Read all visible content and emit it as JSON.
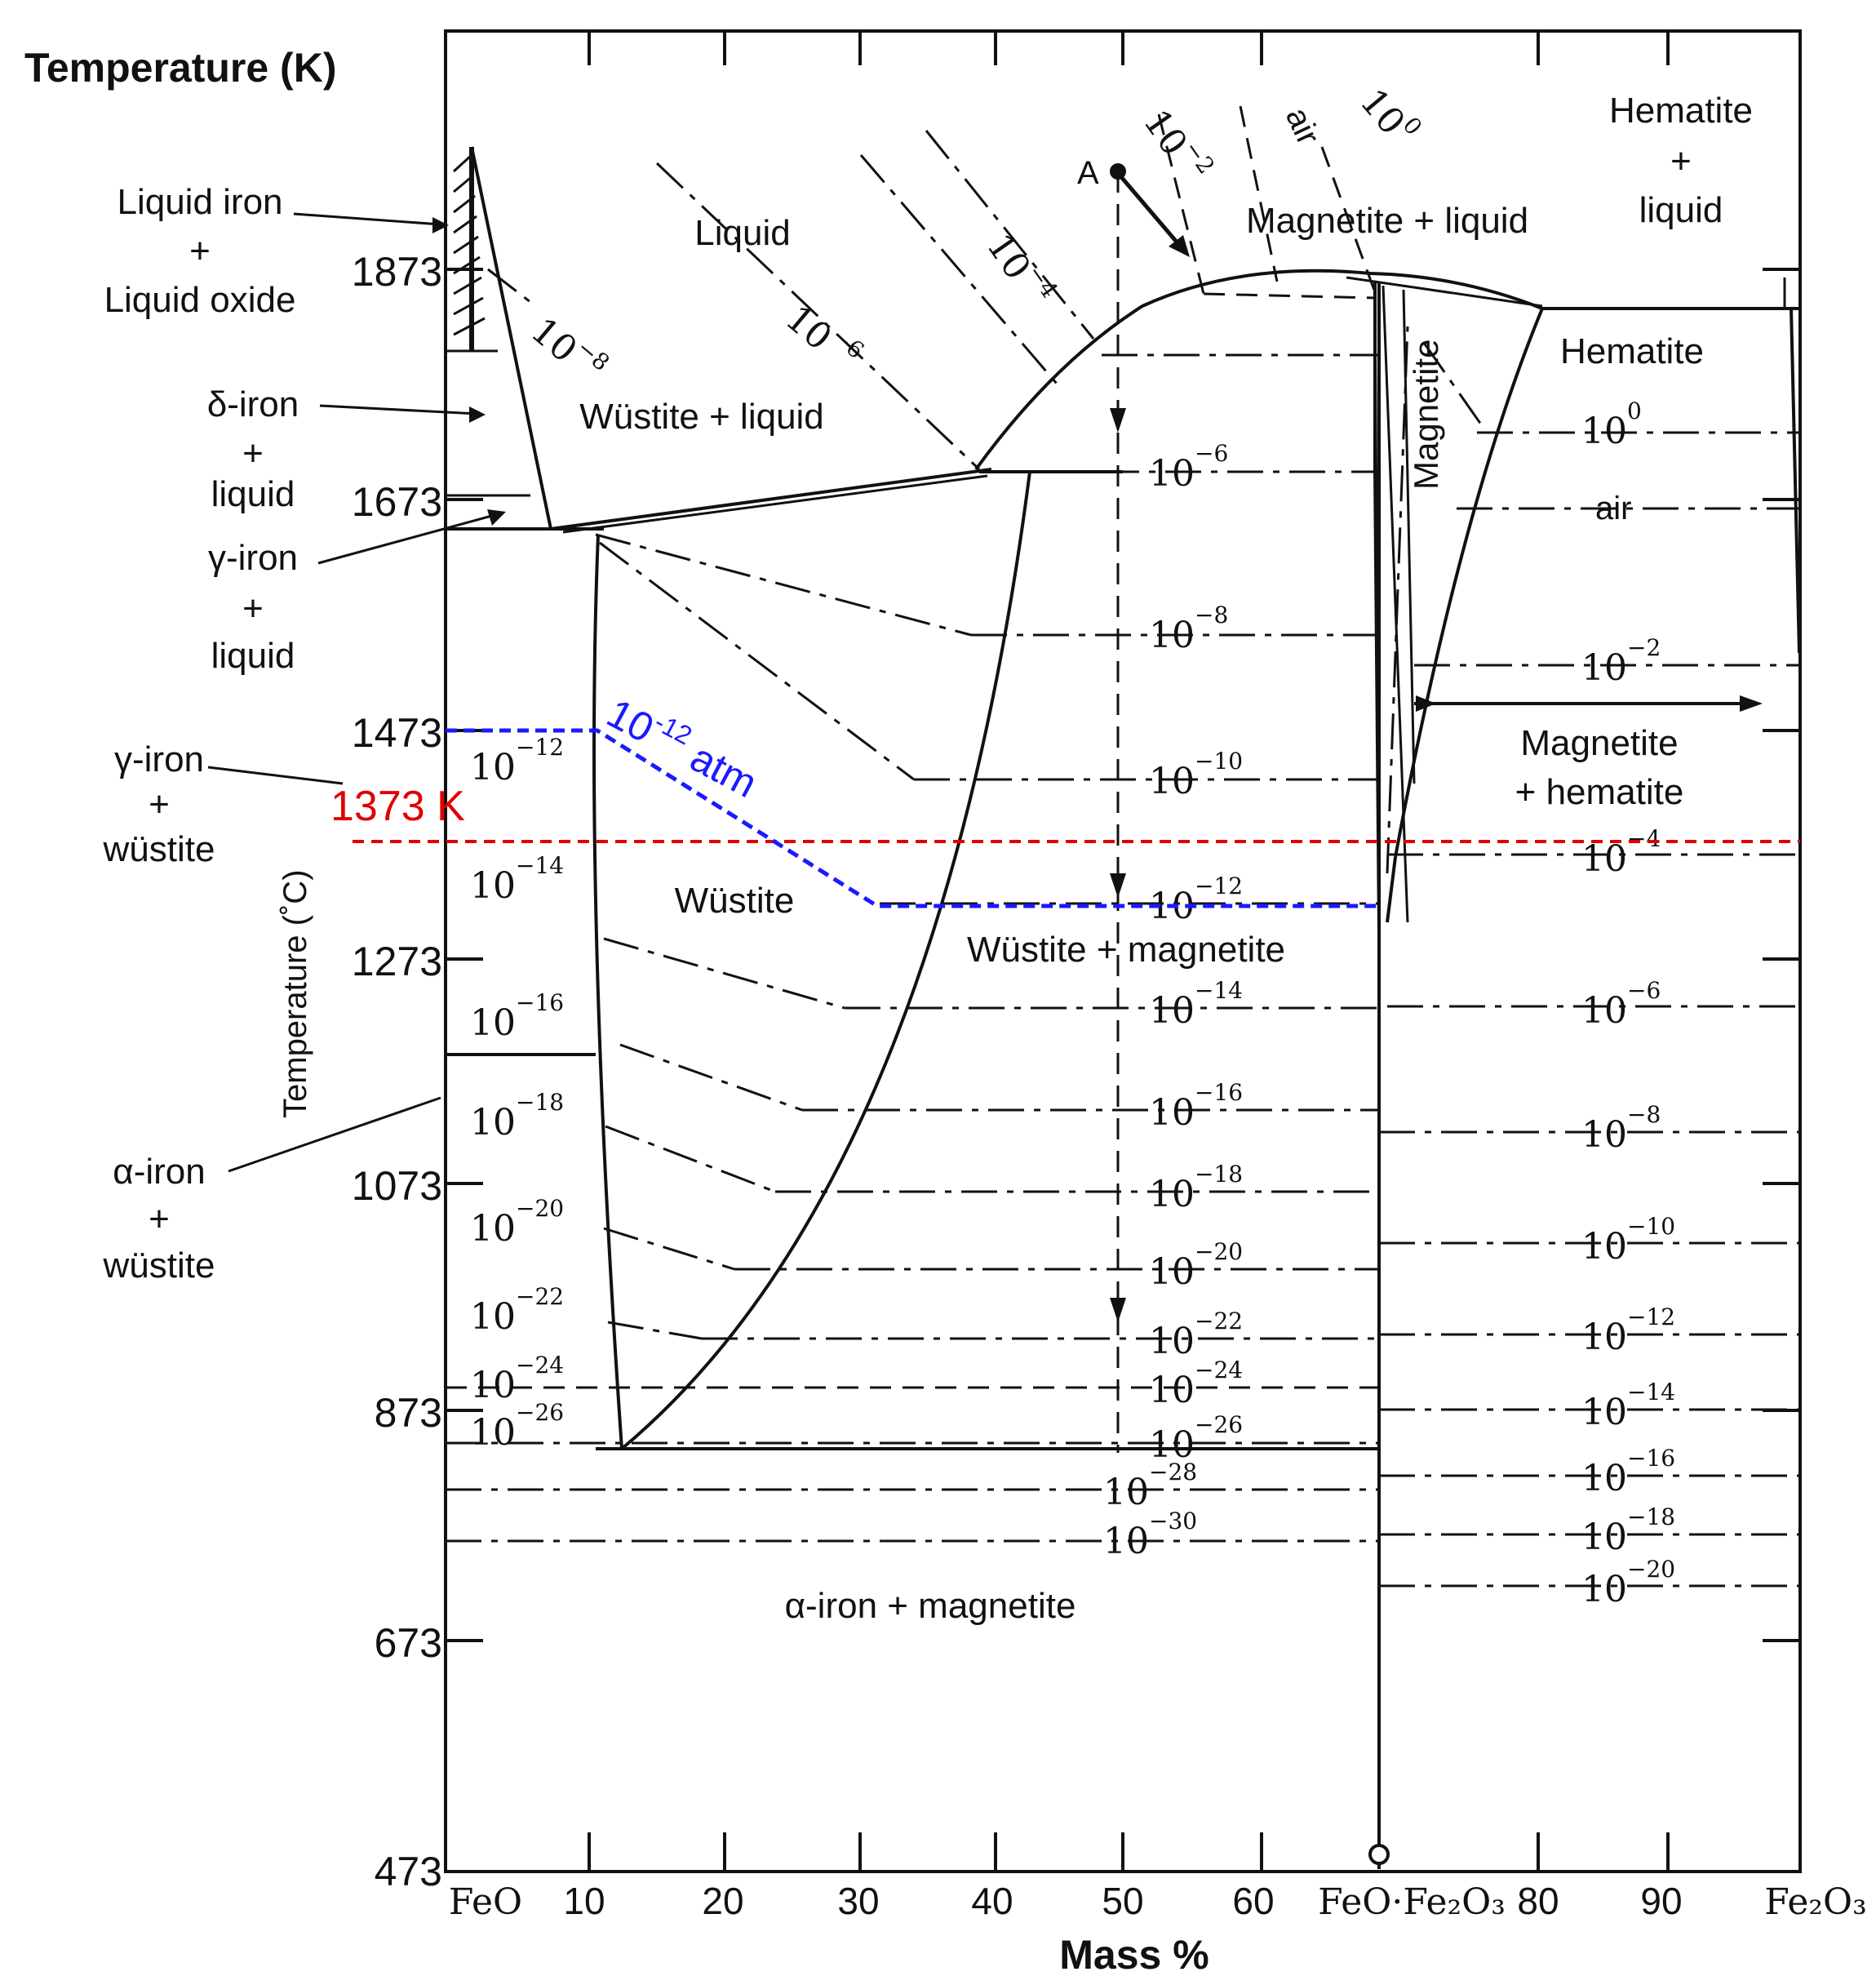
{
  "title": "Temperature (K)",
  "axis": {
    "x_label": "Mass %",
    "y_label": "Temperature (˚C)",
    "y_ticks": [
      "1873",
      "1673",
      "1473",
      "1273",
      "1073",
      "873",
      "673",
      "473"
    ],
    "x_ticks": [
      "FeO",
      "10",
      "20",
      "30",
      "40",
      "50",
      "60",
      "FeO·Fe₂O₃",
      "80",
      "90",
      "Fe₂O₃"
    ]
  },
  "left_labels": {
    "liquid_iron": [
      "Liquid iron",
      "+",
      "Liquid oxide"
    ],
    "delta_iron": [
      "δ-iron",
      "+",
      "liquid"
    ],
    "gamma_iron_liquid": [
      "γ-iron",
      "+",
      "liquid"
    ],
    "gamma_iron_wustite": [
      "γ-iron",
      "+",
      "wüstite"
    ],
    "alpha_iron_wustite": [
      "α-iron",
      "+",
      "wüstite"
    ]
  },
  "regions": {
    "liquid": "Liquid",
    "wustite_liquid": "Wüstite + liquid",
    "wustite": "Wüstite",
    "wustite_magnetite": "Wüstite  + magnetite",
    "alpha_magnetite": "α-iron + magnetite",
    "magnetite_liquid": "Magnetite + liquid",
    "magnetite": "Magnetite",
    "hematite_liquid": [
      "Hematite",
      "+",
      "liquid"
    ],
    "hematite": "Hematite",
    "magnetite_hematite": [
      "Magnetite",
      "+ hematite"
    ]
  },
  "point_a": "A",
  "isobars": {
    "base": "10",
    "top_slanted": [
      "−8",
      "−6",
      "−4",
      "−2"
    ],
    "top_air": "air",
    "top_zero": "0",
    "center_exps": [
      "−6",
      "−8",
      "−10",
      "−12",
      "−14",
      "−16",
      "−18",
      "−20",
      "−22",
      "−24",
      "−26",
      "−28",
      "−30"
    ],
    "left_exps": [
      "−12",
      "−14",
      "−16",
      "−18",
      "−20",
      "−22",
      "−24",
      "−26"
    ],
    "right_exps": [
      "0",
      "−2",
      "−4",
      "−6",
      "−8",
      "−10",
      "−12",
      "−14",
      "−16",
      "−18",
      "−20"
    ],
    "right_air": "air"
  },
  "annotations": {
    "red_temp": "1373 K",
    "red_color": "#e00000",
    "blue_base": "10",
    "blue_exp": "-12",
    "blue_unit": " atm",
    "blue_color": "#1a1aff"
  }
}
